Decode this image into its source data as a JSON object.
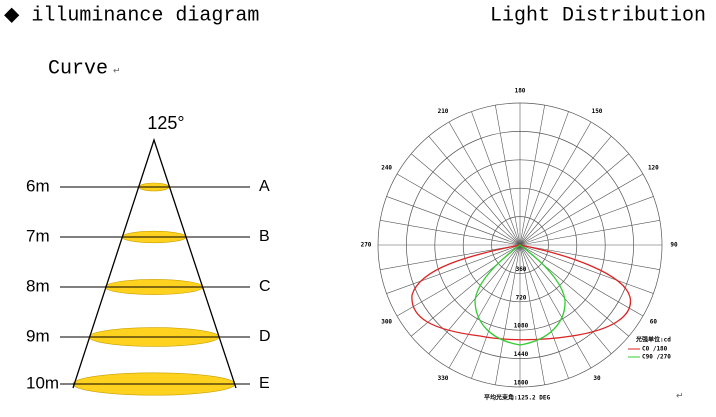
{
  "header": {
    "left": "◆ illuminance diagram",
    "right": "Light Distribution"
  },
  "subtitle": "Curve",
  "marks": [
    "↵",
    "↵"
  ],
  "cone": {
    "angle": "125°",
    "distances": [
      "6m",
      "7m",
      "8m",
      "9m",
      "10m"
    ],
    "labels": [
      "A",
      "B",
      "C",
      "D",
      "E"
    ]
  },
  "polar": {
    "angle_labels": [
      "180",
      "210",
      "240",
      "270",
      "300",
      "330",
      "30",
      "60",
      "90",
      "120",
      "150"
    ],
    "radial_labels": [
      "360",
      "720",
      "1080",
      "1440",
      "1800"
    ],
    "unit": "光强单位:cd",
    "legend": [
      "C0 /180",
      "C90 /270"
    ],
    "beam_angle": "平均光束角:125.2 DEG"
  }
}
